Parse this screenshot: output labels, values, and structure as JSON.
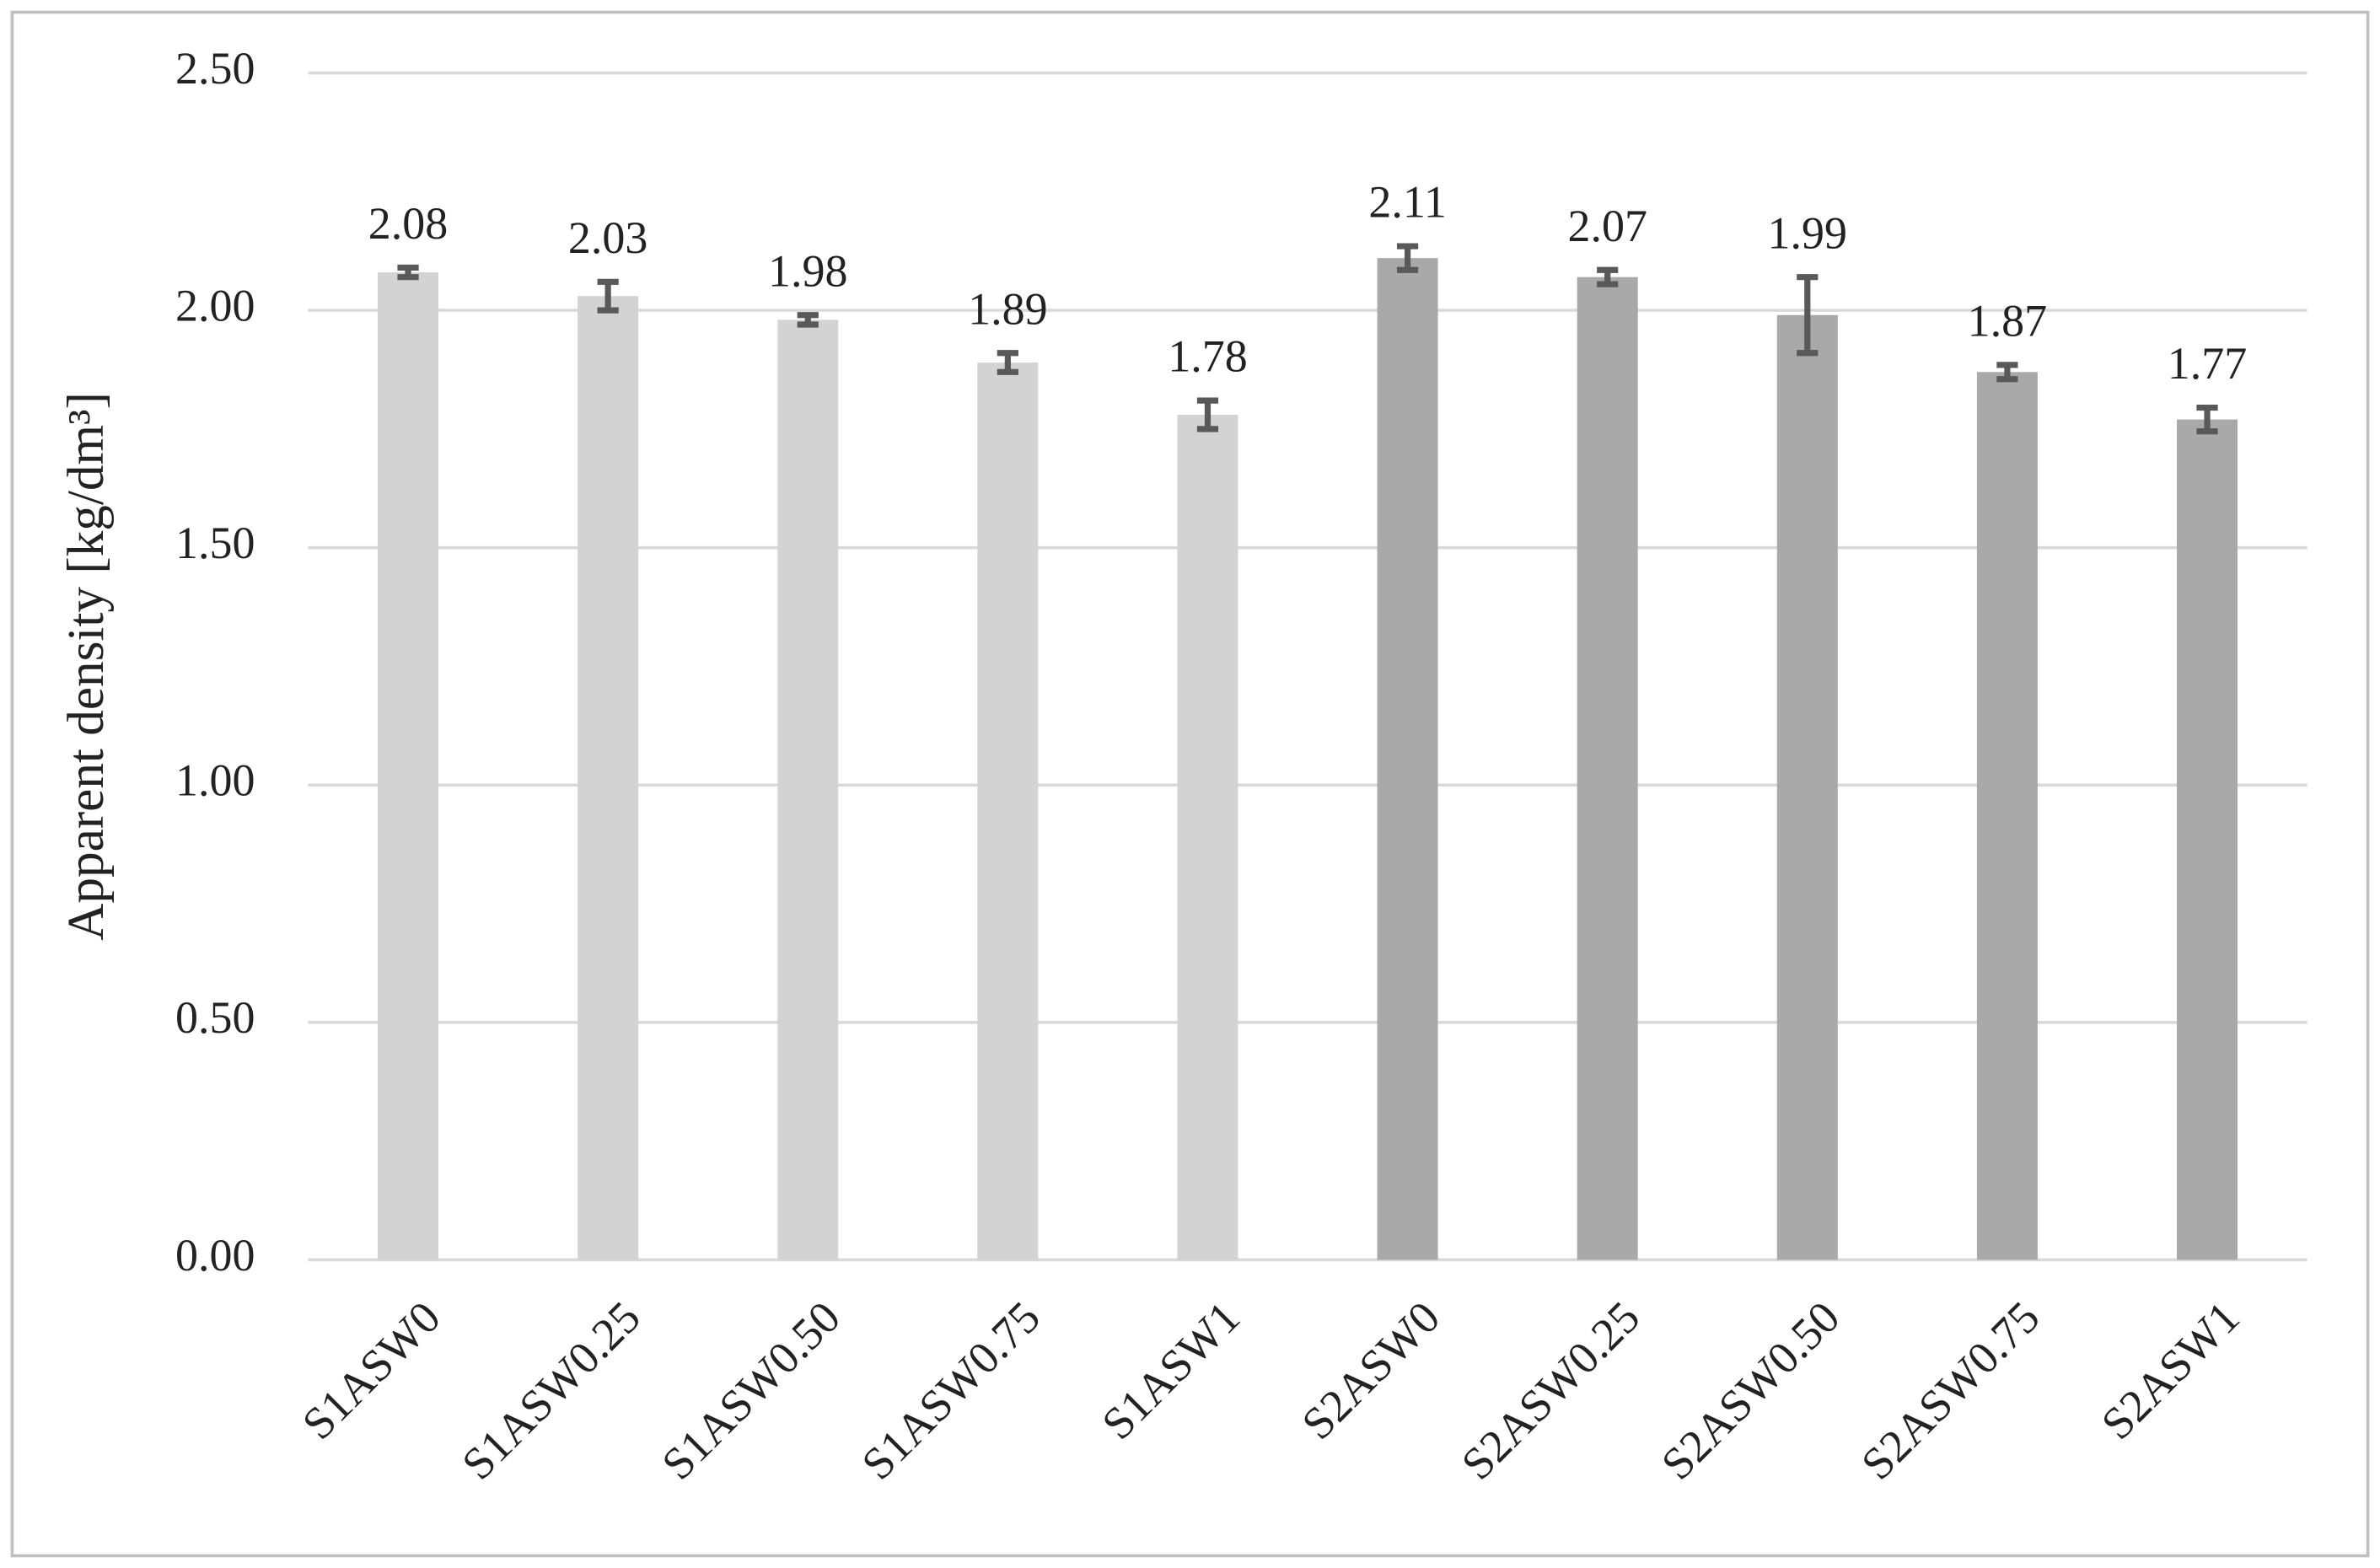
{
  "chart_data": {
    "type": "bar",
    "y_axis_label": "Apparent density [kg/dm³]",
    "categories": [
      "S1ASW0",
      "S1ASW0.25",
      "S1ASW0.50",
      "S1ASW0.75",
      "S1ASW1",
      "S2ASW0",
      "S2ASW0.25",
      "S2ASW0.50",
      "S2ASW0.75",
      "S2ASW1"
    ],
    "values": [
      2.08,
      2.03,
      1.98,
      1.89,
      1.78,
      2.11,
      2.07,
      1.99,
      1.87,
      1.77
    ],
    "errors": [
      0.01,
      0.03,
      0.01,
      0.02,
      0.03,
      0.025,
      0.015,
      0.08,
      0.015,
      0.025
    ],
    "colors": [
      "#d3d3d3",
      "#d3d3d3",
      "#d3d3d3",
      "#d3d3d3",
      "#d3d3d3",
      "#a9a9a9",
      "#a9a9a9",
      "#a9a9a9",
      "#a9a9a9",
      "#a9a9a9"
    ],
    "error_color": "#595959",
    "ylim": [
      0,
      2.5
    ],
    "yticks": [
      {
        "value": 0,
        "label": "0.00"
      },
      {
        "value": 0.5,
        "label": "0.50"
      },
      {
        "value": 1,
        "label": "1.00"
      },
      {
        "value": 1.5,
        "label": "1.50"
      },
      {
        "value": 2,
        "label": "2.00"
      },
      {
        "value": 2.5,
        "label": "2.50"
      }
    ],
    "grid": true
  }
}
